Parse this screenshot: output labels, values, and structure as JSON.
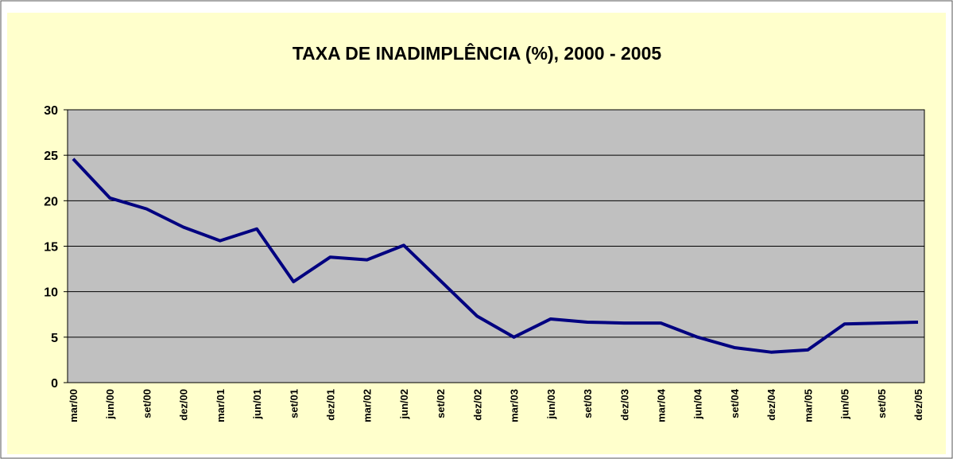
{
  "chart_data": {
    "type": "line",
    "title": "TAXA DE INADIMPLÊNCIA (%), 2000 - 2005",
    "categories": [
      "mar/00",
      "jun/00",
      "set/00",
      "dez/00",
      "mar/01",
      "jun/01",
      "set/01",
      "dez/01",
      "mar/02",
      "jun/02",
      "set/02",
      "dez/02",
      "mar/03",
      "jun/03",
      "set/03",
      "dez/03",
      "mar/04",
      "jun/04",
      "set/04",
      "dez/04",
      "mar/05",
      "jun/05",
      "set/05",
      "dez/05"
    ],
    "series": [
      {
        "color": "#000080",
        "values": [
          24.6,
          20.3,
          19.1,
          17.1,
          15.6,
          16.9,
          11.1,
          13.8,
          13.5,
          15.1,
          11.2,
          7.3,
          5.0,
          7.0,
          6.65,
          6.55,
          6.55,
          5.0,
          3.85,
          3.35,
          3.6,
          6.45,
          6.55,
          6.65
        ]
      }
    ],
    "ylim": [
      0,
      30
    ],
    "yticks": [
      0,
      5,
      10,
      15,
      20,
      25,
      30
    ],
    "grid": true
  }
}
